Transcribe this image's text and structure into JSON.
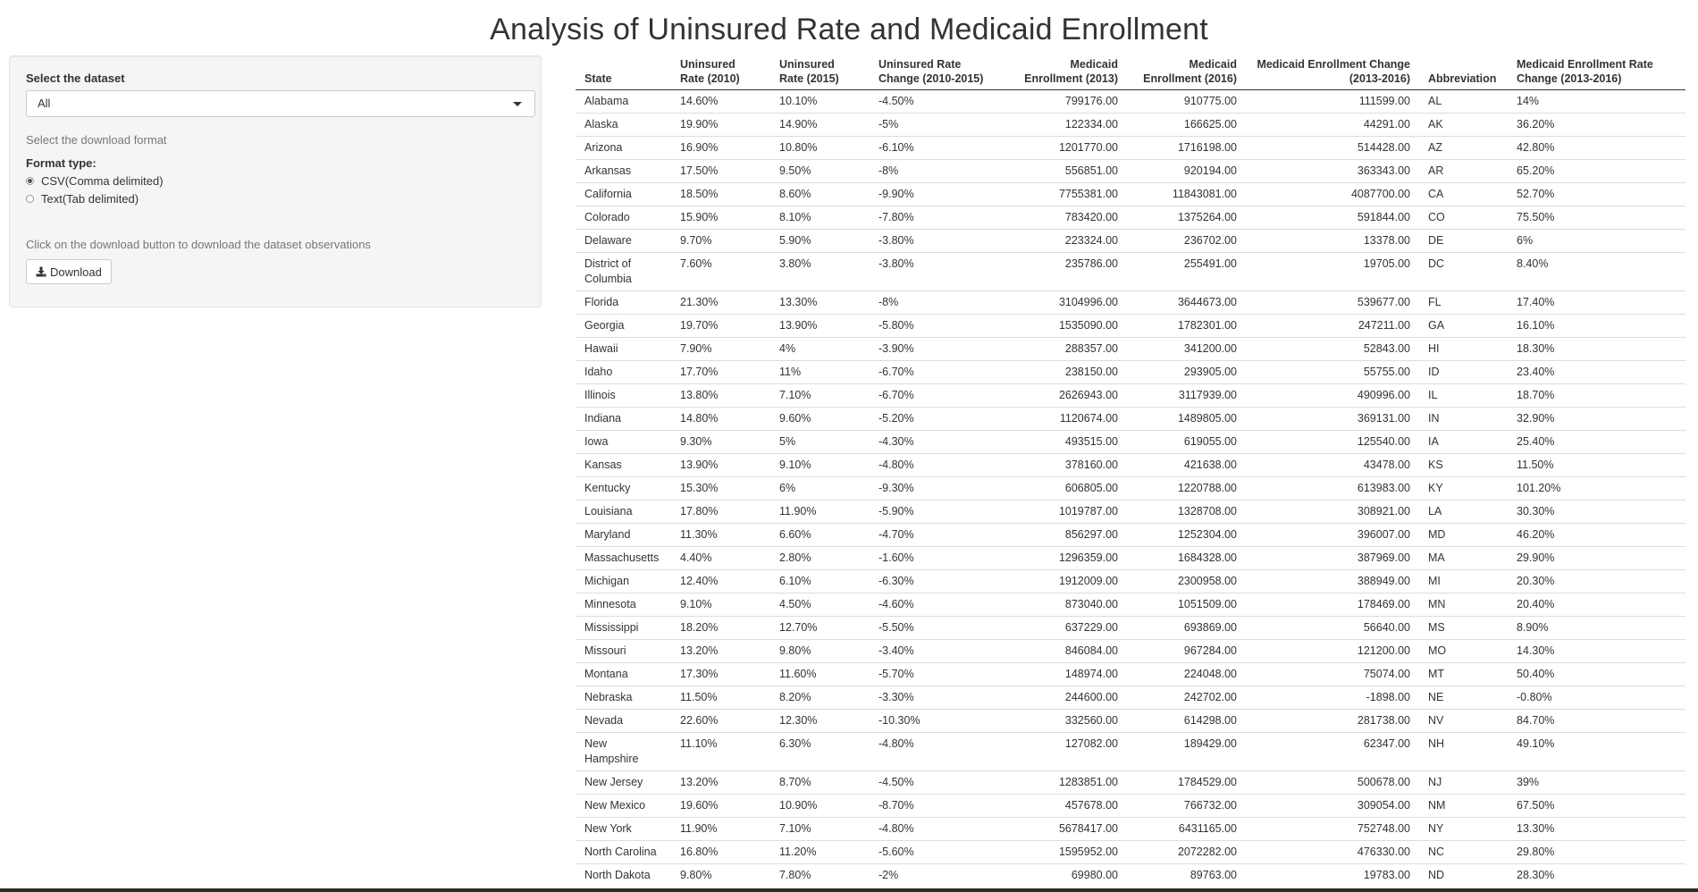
{
  "page": {
    "title": "Analysis of Uninsured Rate and Medicaid Enrollment"
  },
  "sidebar": {
    "dataset_label": "Select the dataset",
    "dataset_selected": "All",
    "download_format_label": "Select the download format",
    "format_type_label": "Format type:",
    "formats": [
      {
        "label": "CSV(Comma delimited)",
        "checked": true
      },
      {
        "label": "Text(Tab delimited)",
        "checked": false
      }
    ],
    "download_hint": "Click on the download button to download the dataset observations",
    "download_button_label": "Download"
  },
  "table": {
    "headers": [
      {
        "label": "State",
        "align": "left"
      },
      {
        "label": "Uninsured Rate (2010)",
        "align": "left"
      },
      {
        "label": "Uninsured Rate (2015)",
        "align": "left"
      },
      {
        "label": "Uninsured Rate Change (2010-2015)",
        "align": "left"
      },
      {
        "label": "Medicaid Enrollment (2013)",
        "align": "right"
      },
      {
        "label": "Medicaid Enrollment (2016)",
        "align": "right"
      },
      {
        "label": "Medicaid Enrollment Change (2013-2016)",
        "align": "right"
      },
      {
        "label": "Abbreviation",
        "align": "left"
      },
      {
        "label": "Medicaid Enrollment Rate Change (2013-2016)",
        "align": "left"
      }
    ],
    "rows": [
      [
        "Alabama",
        "14.60%",
        "10.10%",
        "-4.50%",
        "799176.00",
        "910775.00",
        "111599.00",
        "AL",
        "14%"
      ],
      [
        "Alaska",
        "19.90%",
        "14.90%",
        "-5%",
        "122334.00",
        "166625.00",
        "44291.00",
        "AK",
        "36.20%"
      ],
      [
        "Arizona",
        "16.90%",
        "10.80%",
        "-6.10%",
        "1201770.00",
        "1716198.00",
        "514428.00",
        "AZ",
        "42.80%"
      ],
      [
        "Arkansas",
        "17.50%",
        "9.50%",
        "-8%",
        "556851.00",
        "920194.00",
        "363343.00",
        "AR",
        "65.20%"
      ],
      [
        "California",
        "18.50%",
        "8.60%",
        "-9.90%",
        "7755381.00",
        "11843081.00",
        "4087700.00",
        "CA",
        "52.70%"
      ],
      [
        "Colorado",
        "15.90%",
        "8.10%",
        "-7.80%",
        "783420.00",
        "1375264.00",
        "591844.00",
        "CO",
        "75.50%"
      ],
      [
        "Delaware",
        "9.70%",
        "5.90%",
        "-3.80%",
        "223324.00",
        "236702.00",
        "13378.00",
        "DE",
        "6%"
      ],
      [
        "District of Columbia",
        "7.60%",
        "3.80%",
        "-3.80%",
        "235786.00",
        "255491.00",
        "19705.00",
        "DC",
        "8.40%"
      ],
      [
        "Florida",
        "21.30%",
        "13.30%",
        "-8%",
        "3104996.00",
        "3644673.00",
        "539677.00",
        "FL",
        "17.40%"
      ],
      [
        "Georgia",
        "19.70%",
        "13.90%",
        "-5.80%",
        "1535090.00",
        "1782301.00",
        "247211.00",
        "GA",
        "16.10%"
      ],
      [
        "Hawaii",
        "7.90%",
        "4%",
        "-3.90%",
        "288357.00",
        "341200.00",
        "52843.00",
        "HI",
        "18.30%"
      ],
      [
        "Idaho",
        "17.70%",
        "11%",
        "-6.70%",
        "238150.00",
        "293905.00",
        "55755.00",
        "ID",
        "23.40%"
      ],
      [
        "Illinois",
        "13.80%",
        "7.10%",
        "-6.70%",
        "2626943.00",
        "3117939.00",
        "490996.00",
        "IL",
        "18.70%"
      ],
      [
        "Indiana",
        "14.80%",
        "9.60%",
        "-5.20%",
        "1120674.00",
        "1489805.00",
        "369131.00",
        "IN",
        "32.90%"
      ],
      [
        "Iowa",
        "9.30%",
        "5%",
        "-4.30%",
        "493515.00",
        "619055.00",
        "125540.00",
        "IA",
        "25.40%"
      ],
      [
        "Kansas",
        "13.90%",
        "9.10%",
        "-4.80%",
        "378160.00",
        "421638.00",
        "43478.00",
        "KS",
        "11.50%"
      ],
      [
        "Kentucky",
        "15.30%",
        "6%",
        "-9.30%",
        "606805.00",
        "1220788.00",
        "613983.00",
        "KY",
        "101.20%"
      ],
      [
        "Louisiana",
        "17.80%",
        "11.90%",
        "-5.90%",
        "1019787.00",
        "1328708.00",
        "308921.00",
        "LA",
        "30.30%"
      ],
      [
        "Maryland",
        "11.30%",
        "6.60%",
        "-4.70%",
        "856297.00",
        "1252304.00",
        "396007.00",
        "MD",
        "46.20%"
      ],
      [
        "Massachusetts",
        "4.40%",
        "2.80%",
        "-1.60%",
        "1296359.00",
        "1684328.00",
        "387969.00",
        "MA",
        "29.90%"
      ],
      [
        "Michigan",
        "12.40%",
        "6.10%",
        "-6.30%",
        "1912009.00",
        "2300958.00",
        "388949.00",
        "MI",
        "20.30%"
      ],
      [
        "Minnesota",
        "9.10%",
        "4.50%",
        "-4.60%",
        "873040.00",
        "1051509.00",
        "178469.00",
        "MN",
        "20.40%"
      ],
      [
        "Mississippi",
        "18.20%",
        "12.70%",
        "-5.50%",
        "637229.00",
        "693869.00",
        "56640.00",
        "MS",
        "8.90%"
      ],
      [
        "Missouri",
        "13.20%",
        "9.80%",
        "-3.40%",
        "846084.00",
        "967284.00",
        "121200.00",
        "MO",
        "14.30%"
      ],
      [
        "Montana",
        "17.30%",
        "11.60%",
        "-5.70%",
        "148974.00",
        "224048.00",
        "75074.00",
        "MT",
        "50.40%"
      ],
      [
        "Nebraska",
        "11.50%",
        "8.20%",
        "-3.30%",
        "244600.00",
        "242702.00",
        "-1898.00",
        "NE",
        "-0.80%"
      ],
      [
        "Nevada",
        "22.60%",
        "12.30%",
        "-10.30%",
        "332560.00",
        "614298.00",
        "281738.00",
        "NV",
        "84.70%"
      ],
      [
        "New Hampshire",
        "11.10%",
        "6.30%",
        "-4.80%",
        "127082.00",
        "189429.00",
        "62347.00",
        "NH",
        "49.10%"
      ],
      [
        "New Jersey",
        "13.20%",
        "8.70%",
        "-4.50%",
        "1283851.00",
        "1784529.00",
        "500678.00",
        "NJ",
        "39%"
      ],
      [
        "New Mexico",
        "19.60%",
        "10.90%",
        "-8.70%",
        "457678.00",
        "766732.00",
        "309054.00",
        "NM",
        "67.50%"
      ],
      [
        "New York",
        "11.90%",
        "7.10%",
        "-4.80%",
        "5678417.00",
        "6431165.00",
        "752748.00",
        "NY",
        "13.30%"
      ],
      [
        "North Carolina",
        "16.80%",
        "11.20%",
        "-5.60%",
        "1595952.00",
        "2072282.00",
        "476330.00",
        "NC",
        "29.80%"
      ],
      [
        "North Dakota",
        "9.80%",
        "7.80%",
        "-2%",
        "69980.00",
        "89763.00",
        "19783.00",
        "ND",
        "28.30%"
      ]
    ]
  }
}
